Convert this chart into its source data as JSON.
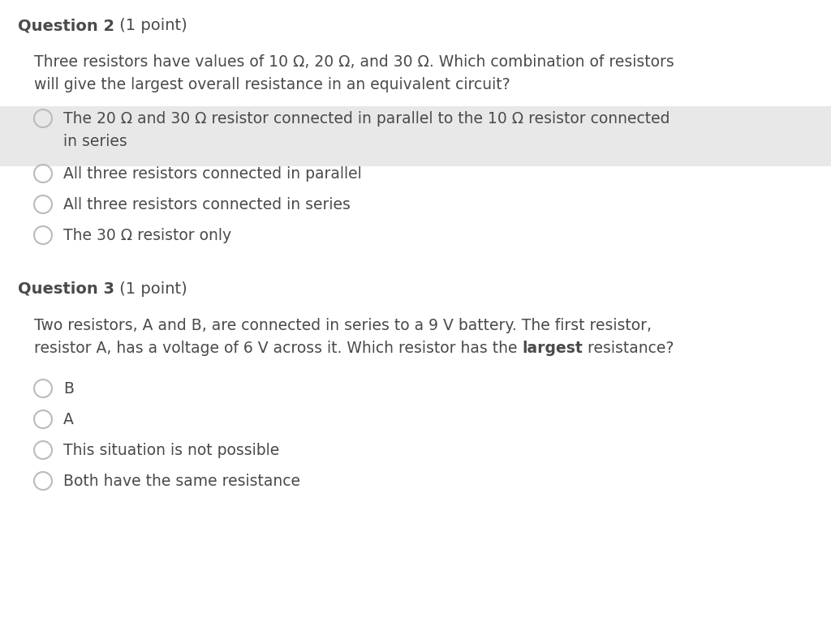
{
  "bg_color": "#ffffff",
  "q2_title_bold": "Question 2",
  "q2_title_normal": " (1 point)",
  "q2_body_line1": "Three resistors have values of 10 Ω, 20 Ω, and 30 Ω. Which combination of resistors",
  "q2_body_line2": "will give the largest overall resistance in an equivalent circuit?",
  "q2_options": [
    "The 20 Ω and 30 Ω resistor connected in parallel to the 10 Ω resistor connected",
    "in series",
    "All three resistors connected in parallel",
    "All three resistors connected in series",
    "The 30 Ω resistor only"
  ],
  "q3_title_bold": "Question 3",
  "q3_title_normal": " (1 point)",
  "q3_body_line1": "Two resistors, A and B, are connected in series to a 9 V battery. The first resistor,",
  "q3_body_line2_pre": "resistor A, has a voltage of 6 V across it. Which resistor has the ",
  "q3_body_line2_bold": "largest",
  "q3_body_line2_post": " resistance?",
  "q3_options": [
    "B",
    "A",
    "This situation is not possible",
    "Both have the same resistance"
  ],
  "highlight_color": "#e8e8e8",
  "text_color": "#4a4a4a",
  "title_fontsize": 14,
  "body_fontsize": 13.5,
  "option_fontsize": 13.5
}
